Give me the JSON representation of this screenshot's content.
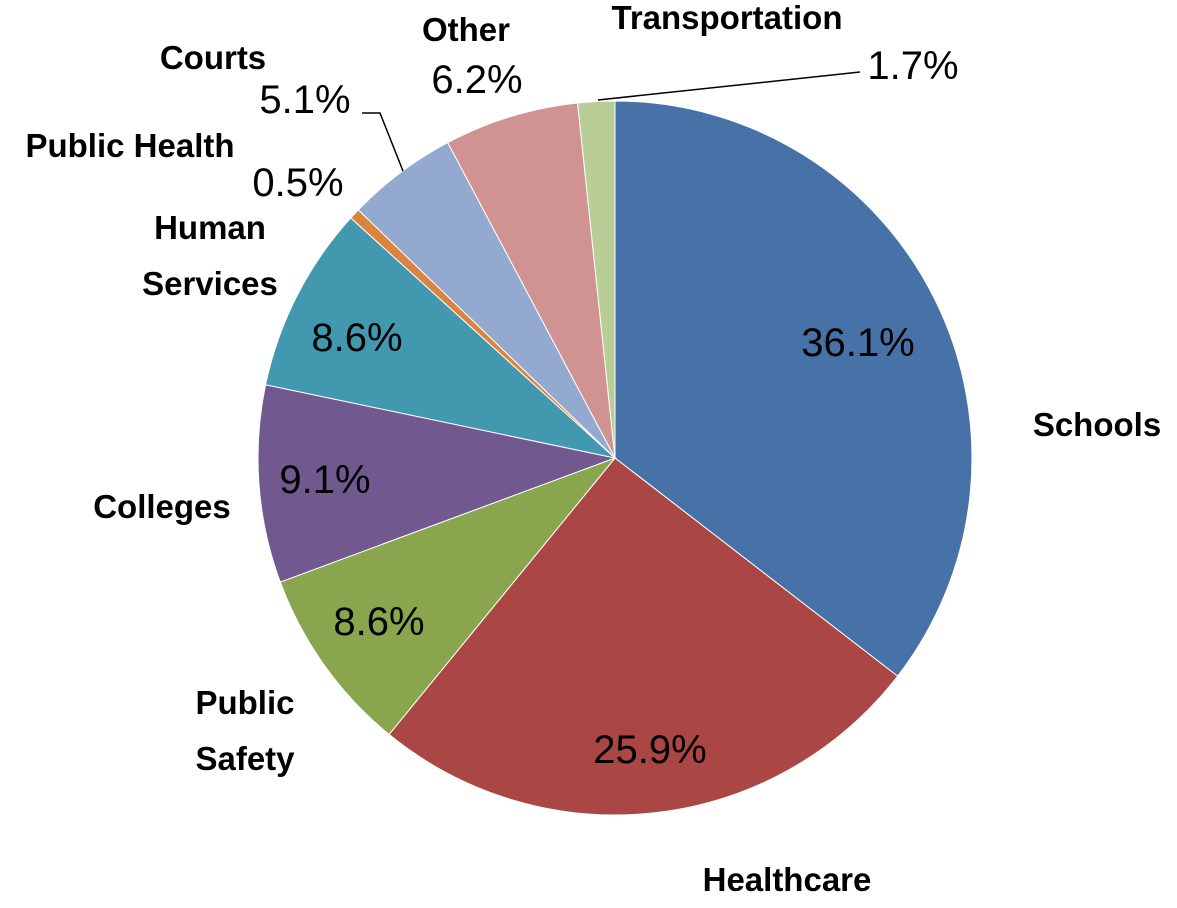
{
  "chart_data": {
    "type": "pie",
    "categories": [
      "Schools",
      "Healthcare",
      "Public Safety",
      "Colleges",
      "Human Services",
      "Public Health",
      "Courts",
      "Other",
      "Transportation"
    ],
    "values": [
      36.1,
      25.9,
      8.6,
      9.1,
      8.6,
      0.5,
      5.1,
      6.2,
      1.7
    ],
    "value_labels": [
      "36.1%",
      "25.9%",
      "8.6%",
      "9.1%",
      "8.6%",
      "0.5%",
      "5.1%",
      "6.2%",
      "1.7%"
    ],
    "colors": [
      "#4672a8",
      "#aa4644",
      "#89a54e",
      "#71588f",
      "#4298af",
      "#db843d",
      "#93a9cf",
      "#d19392",
      "#b9cd96"
    ]
  }
}
